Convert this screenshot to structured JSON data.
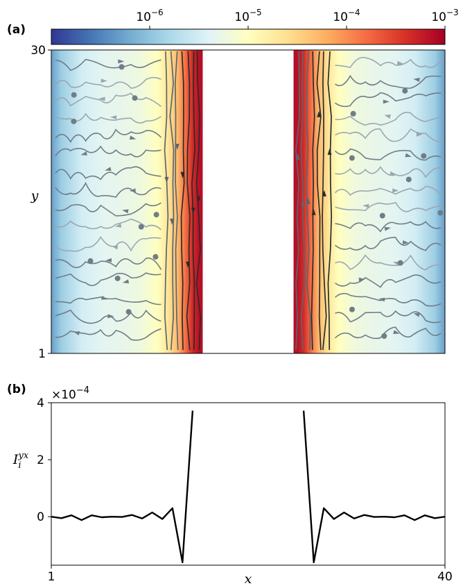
{
  "chart_data": [
    {
      "panel": "(a)",
      "type": "heatmap",
      "ylabel": "y",
      "xlim": [
        1,
        40
      ],
      "ylim": [
        1,
        30
      ],
      "y_ticks": [
        "1",
        "30"
      ],
      "gap_x_range": [
        16.0,
        25.0
      ],
      "colorbar": {
        "scale": "log",
        "range": [
          1e-07,
          0.001
        ],
        "ticks": [
          {
            "value": 1e-06,
            "base": "10",
            "exp": "−6"
          },
          {
            "value": 1e-05,
            "base": "10",
            "exp": "−5"
          },
          {
            "value": 0.0001,
            "base": "10",
            "exp": "−4"
          },
          {
            "value": 0.001,
            "base": "10",
            "exp": "−3"
          }
        ],
        "colors": [
          "#313695",
          "#4575b4",
          "#74add1",
          "#abd9e9",
          "#e0f3f8",
          "#ffffbf",
          "#fee090",
          "#fdae61",
          "#f46d43",
          "#d73027",
          "#a50026"
        ]
      },
      "magnitude_profile_log10": [
        {
          "x": 1.0,
          "v": -6.3
        },
        {
          "x": 2.0,
          "v": -5.9
        },
        {
          "x": 4.0,
          "v": -5.5
        },
        {
          "x": 6.0,
          "v": -5.35
        },
        {
          "x": 8.0,
          "v": -5.3
        },
        {
          "x": 10.0,
          "v": -5.2
        },
        {
          "x": 11.5,
          "v": -5.0
        },
        {
          "x": 12.5,
          "v": -4.7
        },
        {
          "x": 13.5,
          "v": -4.3
        },
        {
          "x": 14.3,
          "v": -3.8
        },
        {
          "x": 15.0,
          "v": -3.35
        },
        {
          "x": 15.6,
          "v": -3.15
        },
        {
          "x": 16.0,
          "v": -3.1
        }
      ]
    },
    {
      "panel": "(b)",
      "type": "line",
      "xlabel": "x",
      "ylabel_base": "I",
      "ylabel_sub": "i",
      "ylabel_sup": "yx",
      "multiplier_text": "×10",
      "multiplier_exp": "−4",
      "xlim": [
        1,
        40
      ],
      "ylim": [
        -1.7,
        4
      ],
      "x_ticks": [
        "1",
        "40"
      ],
      "y_ticks": [
        {
          "value": 0,
          "label": "0"
        },
        {
          "value": 2,
          "label": "2"
        },
        {
          "value": 4,
          "label": "4"
        }
      ],
      "segments": [
        [
          {
            "x": 1,
            "y": 0.0
          },
          {
            "x": 2,
            "y": -0.05
          },
          {
            "x": 3,
            "y": 0.05
          },
          {
            "x": 4,
            "y": -0.12
          },
          {
            "x": 5,
            "y": 0.05
          },
          {
            "x": 6,
            "y": -0.02
          },
          {
            "x": 7,
            "y": 0.0
          },
          {
            "x": 8,
            "y": -0.01
          },
          {
            "x": 9,
            "y": 0.06
          },
          {
            "x": 10,
            "y": -0.06
          },
          {
            "x": 11,
            "y": 0.15
          },
          {
            "x": 12,
            "y": -0.08
          },
          {
            "x": 13,
            "y": 0.3
          },
          {
            "x": 14,
            "y": -1.6
          },
          {
            "x": 15,
            "y": 3.72
          }
        ],
        [
          {
            "x": 26,
            "y": 3.72
          },
          {
            "x": 27,
            "y": -1.6
          },
          {
            "x": 28,
            "y": 0.3
          },
          {
            "x": 29,
            "y": -0.08
          },
          {
            "x": 30,
            "y": 0.15
          },
          {
            "x": 31,
            "y": -0.06
          },
          {
            "x": 32,
            "y": 0.06
          },
          {
            "x": 33,
            "y": -0.01
          },
          {
            "x": 34,
            "y": 0.0
          },
          {
            "x": 35,
            "y": -0.02
          },
          {
            "x": 36,
            "y": 0.05
          },
          {
            "x": 37,
            "y": -0.12
          },
          {
            "x": 38,
            "y": 0.05
          },
          {
            "x": 39,
            "y": -0.05
          },
          {
            "x": 40,
            "y": 0.0
          }
        ]
      ]
    }
  ]
}
